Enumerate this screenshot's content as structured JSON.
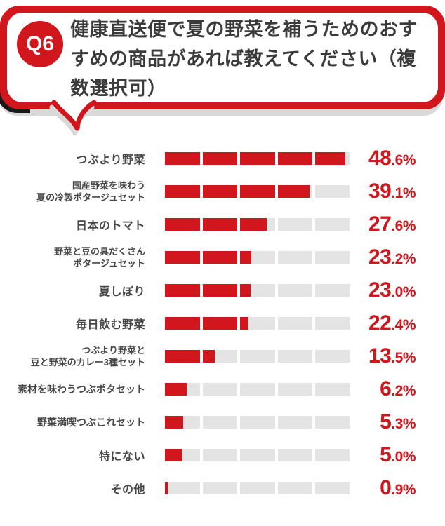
{
  "question": {
    "badge": "Q6",
    "text": "健康直送便で夏の野菜を補うためのおすすめの商品があれば教えてください（複数選択可）"
  },
  "colors": {
    "accent_red": "#d1161d",
    "track_gray": "#e4e4e4",
    "label_gray": "#474747",
    "shadow_gray": "#d9d9d9"
  },
  "chart_data": {
    "type": "bar",
    "orientation": "horizontal",
    "xlim": [
      0,
      50
    ],
    "segments": 5,
    "segment_interval_pct": 10,
    "grid": false,
    "legend": false,
    "categories": [
      [
        "つぶより野菜"
      ],
      [
        "国産野菜を味わう",
        "夏の冷製ポタージュセット"
      ],
      [
        "日本のトマト"
      ],
      [
        "野菜と豆の具だくさん",
        "ポタージュセット"
      ],
      [
        "夏しぼり"
      ],
      [
        "毎日飲む野菜"
      ],
      [
        "つぶより野菜と",
        "豆と野菜のカレー3種セット"
      ],
      [
        "素材を味わうつぶポタセット"
      ],
      [
        "野菜満喫つぶこれセット"
      ],
      [
        "特にない"
      ],
      [
        "その他"
      ]
    ],
    "values": [
      48.6,
      39.1,
      27.6,
      23.2,
      23.0,
      22.4,
      13.5,
      6.2,
      5.3,
      5.0,
      0.9
    ],
    "value_labels": [
      "48.6%",
      "39.1%",
      "27.6%",
      "23.2%",
      "23.0%",
      "22.4%",
      "13.5%",
      "6.2%",
      "5.3%",
      "5.0%",
      "0.9%"
    ]
  }
}
